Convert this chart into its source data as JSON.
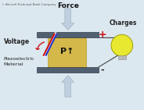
{
  "bg_color": "#dce8f0",
  "title_text": "© Aircraft Technical Book Company",
  "force_label": "Force",
  "voltage_label": "Voltage",
  "piezo_label": "Piezoelectric\nMaterial",
  "charges_label": "Charges",
  "p_label": "P↑",
  "plus_label": "+",
  "minus_label": "-",
  "box_color": "#d4b84a",
  "box_edge_color": "#b89830",
  "plate_color": "#506070",
  "plate_top_color": "#607888",
  "arrow_color": "#c0cfe0",
  "arrow_edge_color": "#9aaabb",
  "bulb_color": "#e8e830",
  "bulb_edge_color": "#a0a000",
  "wire_color": "#444444",
  "bolt_red": "#cc1111",
  "bolt_blue": "#2233cc",
  "bolt_white": "#ffffff",
  "plus_color": "#cc1111",
  "minus_color": "#111111",
  "font_color": "#111111",
  "label_color": "#222222"
}
